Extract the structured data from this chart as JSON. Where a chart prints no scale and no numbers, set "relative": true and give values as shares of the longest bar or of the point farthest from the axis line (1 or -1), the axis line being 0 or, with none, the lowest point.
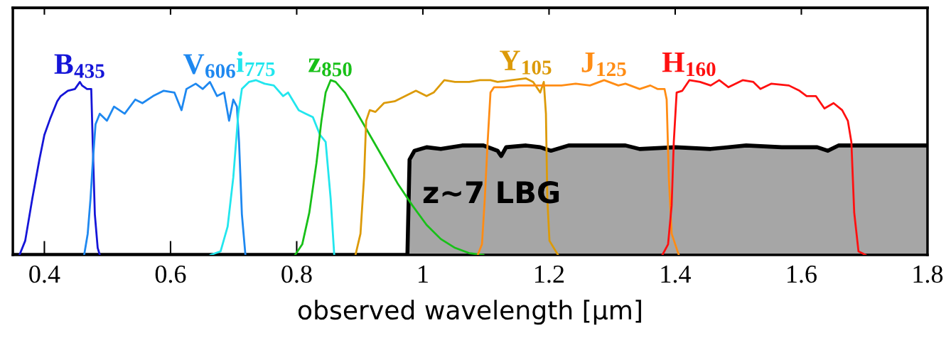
{
  "chart_data": {
    "type": "line",
    "relative": true,
    "xlabel": "observed wavelength [µm]",
    "xlim": [
      0.35,
      1.8
    ],
    "xticks": [
      0.4,
      0.6,
      0.8,
      1,
      1.2,
      1.4,
      1.6,
      1.8
    ],
    "tick_labels": "x",
    "grid": false,
    "legend": false,
    "series": [
      {
        "name": "B$_{435}$",
        "color": "#1515d8",
        "x": [
          0.3606,
          0.3696,
          0.3809,
          0.3921,
          0.4,
          0.409,
          0.4203,
          0.4259,
          0.4372,
          0.4484,
          0.4563,
          0.4597,
          0.4676,
          0.4743,
          0.4766,
          0.48,
          0.4845,
          0.4878
        ],
        "values": [
          0,
          0.08,
          0.32,
          0.54,
          0.68,
          0.77,
          0.87,
          0.9,
          0.93,
          0.94,
          0.98,
          0.96,
          0.94,
          0.94,
          0.64,
          0.23,
          0.04,
          0
        ]
      },
      {
        "name": "V$_{606}$",
        "color": "#1e88f0",
        "x": [
          0.4631,
          0.4687,
          0.4732,
          0.4766,
          0.4811,
          0.4878,
          0.4991,
          0.5104,
          0.5273,
          0.5441,
          0.5554,
          0.5723,
          0.5892,
          0.6061,
          0.6174,
          0.6252,
          0.6399,
          0.6511,
          0.6624,
          0.6737,
          0.6849,
          0.6928,
          0.6995,
          0.7052,
          0.7086,
          0.7131,
          0.7187
        ],
        "values": [
          0,
          0.12,
          0.32,
          0.52,
          0.74,
          0.8,
          0.76,
          0.84,
          0.8,
          0.88,
          0.86,
          0.9,
          0.93,
          0.92,
          0.82,
          0.94,
          0.97,
          0.94,
          0.98,
          0.9,
          0.92,
          0.76,
          0.88,
          0.84,
          0.64,
          0.23,
          0
        ]
      },
      {
        "name": "i$_{775}$",
        "color": "#22e6ee",
        "x": [
          0.6635,
          0.6793,
          0.6905,
          0.6995,
          0.7074,
          0.7131,
          0.7243,
          0.7356,
          0.7491,
          0.7637,
          0.7784,
          0.7863,
          0.8032,
          0.8144,
          0.8257,
          0.8369,
          0.8459,
          0.8538,
          0.8595
        ],
        "values": [
          0,
          0.02,
          0.16,
          0.44,
          0.8,
          0.94,
          0.98,
          0.99,
          0.97,
          0.96,
          0.9,
          0.92,
          0.82,
          0.8,
          0.78,
          0.68,
          0.64,
          0.32,
          0
        ]
      },
      {
        "name": "z$_{850}$",
        "color": "#18c018",
        "x": [
          0.7975,
          0.8088,
          0.82,
          0.8313,
          0.8392,
          0.8459,
          0.8538,
          0.8617,
          0.8764,
          0.8932,
          0.9158,
          0.9383,
          0.9608,
          0.9834,
          1.0059,
          1.0284,
          1.0509,
          1.0734,
          1.096
        ],
        "values": [
          0,
          0.06,
          0.24,
          0.52,
          0.76,
          0.92,
          0.99,
          0.98,
          0.92,
          0.82,
          0.68,
          0.54,
          0.4,
          0.28,
          0.17,
          0.09,
          0.04,
          0.01,
          0
        ]
      },
      {
        "name": "Y$_{105}$",
        "color": "#dc9a08",
        "x": [
          0.8932,
          0.9011,
          0.9068,
          0.9101,
          0.9158,
          0.9248,
          0.9383,
          0.9552,
          0.9721,
          0.989,
          1.0059,
          1.0171,
          1.034,
          1.0509,
          1.0734,
          1.0903,
          1.1072,
          1.1185,
          1.141,
          1.1636,
          1.1748,
          1.186,
          1.1917,
          1.1951,
          1.1973,
          1.2007,
          1.2142
        ],
        "values": [
          0,
          0.12,
          0.44,
          0.76,
          0.82,
          0.81,
          0.86,
          0.87,
          0.9,
          0.93,
          0.9,
          0.92,
          0.99,
          0.98,
          0.98,
          0.99,
          0.99,
          0.98,
          0.99,
          1,
          0.98,
          0.92,
          0.98,
          0.8,
          0.32,
          0.08,
          0
        ]
      },
      {
        "name": "J$_{125}$",
        "color": "#ff8c14",
        "x": [
          1.087,
          1.0937,
          1.0982,
          1.1027,
          1.1072,
          1.1128,
          1.1297,
          1.1523,
          1.1748,
          1.1973,
          1.2198,
          1.2423,
          1.2649,
          1.2874,
          1.3099,
          1.3212,
          1.3437,
          1.3606,
          1.3719,
          1.3831,
          1.3865,
          1.3899,
          1.3944,
          1.4057
        ],
        "values": [
          0,
          0.06,
          0.32,
          0.64,
          0.92,
          0.95,
          0.95,
          0.96,
          0.96,
          0.96,
          0.96,
          0.97,
          0.96,
          0.99,
          0.96,
          0.97,
          0.94,
          0.96,
          0.94,
          0.94,
          0.88,
          0.44,
          0.12,
          0
        ]
      },
      {
        "name": "H$_{160}$",
        "color": "#ff1010",
        "x": [
          1.3798,
          1.3887,
          1.3944,
          1.3978,
          1.4023,
          1.4113,
          1.4225,
          1.4394,
          1.4563,
          1.4698,
          1.4845,
          1.507,
          1.5239,
          1.5351,
          1.5521,
          1.5802,
          1.5971,
          1.6084,
          1.623,
          1.6366,
          1.6511,
          1.6647,
          1.6737,
          1.6793,
          1.6838,
          1.6906,
          1.7018
        ],
        "values": [
          0,
          0.06,
          0.28,
          0.64,
          0.92,
          0.93,
          0.99,
          0.98,
          0.96,
          0.99,
          0.95,
          0.99,
          0.98,
          0.94,
          0.97,
          0.96,
          0.93,
          0.9,
          0.9,
          0.83,
          0.86,
          0.82,
          0.76,
          0.64,
          0.24,
          0.02,
          0
        ]
      },
      {
        "name": "z~7 LBG",
        "type": "area",
        "color": "#a6a6a6",
        "x": [
          0.35,
          0.9755,
          0.9789,
          0.9867,
          1.0059,
          1.0284,
          1.0622,
          1.096,
          1.1185,
          1.1241,
          1.132,
          1.1636,
          1.186,
          1.203,
          1.2311,
          1.2649,
          1.3212,
          1.3437,
          1.4,
          1.4563,
          1.5126,
          1.5689,
          1.6252,
          1.6421,
          1.659,
          1.7378,
          1.8
        ],
        "values": [
          0,
          0,
          0.54,
          0.59,
          0.61,
          0.6,
          0.62,
          0.62,
          0.59,
          0.56,
          0.61,
          0.62,
          0.61,
          0.59,
          0.62,
          0.62,
          0.62,
          0.6,
          0.61,
          0.6,
          0.62,
          0.61,
          0.61,
          0.59,
          0.62,
          0.62,
          0.62
        ]
      }
    ]
  }
}
